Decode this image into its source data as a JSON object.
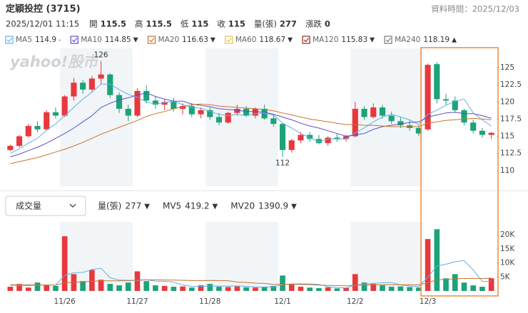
{
  "header": {
    "title": "定穎投控 (3715)",
    "data_time": "資料時間：2025/12/03",
    "datetime": "2025/12/01 11:15",
    "quote": [
      {
        "label": "開",
        "value": 115.5,
        "color": "#e8383d"
      },
      {
        "label": "高",
        "value": 115.5,
        "color": "#e8383d"
      },
      {
        "label": "低",
        "value": 115,
        "color": "#222222"
      },
      {
        "label": "收",
        "value": 115,
        "color": "#222222"
      },
      {
        "label": "量(張)",
        "value": 277,
        "color": "#222222"
      },
      {
        "label": "漲跌",
        "value": 0,
        "color": "#222222"
      }
    ]
  },
  "ma_legend": [
    {
      "name": "MA5",
      "value": 114.9,
      "trend": "-",
      "color": "#5fb0e8",
      "trend_color": "#555555"
    },
    {
      "name": "MA10",
      "value": 114.85,
      "trend": "▼",
      "color": "#5b4fc9",
      "trend_color": "#1da27a"
    },
    {
      "name": "MA20",
      "value": 116.63,
      "trend": "▼",
      "color": "#c8742f",
      "trend_color": "#1da27a"
    },
    {
      "name": "MA60",
      "value": 118.67,
      "trend": "▼",
      "color": "#e8c23c",
      "trend_color": "#1da27a"
    },
    {
      "name": "MA120",
      "value": 115.83,
      "trend": "▼",
      "color": "#8b2b1e",
      "trend_color": "#1da27a"
    },
    {
      "name": "MA240",
      "value": 118.19,
      "trend": "▲",
      "color": "#777777",
      "trend_color": "#e8383d"
    }
  ],
  "volume_panel": {
    "selector": "成交量",
    "items": [
      {
        "name": "量(張)",
        "value": 277,
        "trend": "▼",
        "color": "#333333"
      },
      {
        "name": "MV5",
        "value": 419.2,
        "trend": "▼",
        "color": "#5fb0e8"
      },
      {
        "name": "MV20",
        "value": 1390.9,
        "trend": "▼",
        "color": "#c8742f"
      }
    ]
  },
  "chart_data": [
    {
      "type": "candlestick",
      "watermark": "yahoo!股市",
      "up_color": "#e8383d",
      "down_color": "#1da27a",
      "open": [
        113,
        113.6,
        115,
        116.5,
        116,
        118.5,
        118,
        120.8,
        122.8,
        121.8,
        123.4,
        124,
        121,
        119,
        118,
        121.6,
        120.2,
        119.6,
        120,
        119,
        119.4,
        118.2,
        118.8,
        117.8,
        117,
        118.4,
        119,
        118,
        119,
        117.6,
        116.8,
        113,
        114.4,
        115.2,
        114.6,
        114,
        114.8,
        114.6,
        115,
        119,
        117.8,
        119.2,
        118,
        117.2,
        116.6,
        116.2,
        116,
        125.5,
        120.4,
        120.2,
        118.8,
        117,
        115.8,
        115.2
      ],
      "high": [
        113.8,
        115.2,
        116.8,
        117.2,
        118.8,
        119.2,
        121,
        123.5,
        123.2,
        123.8,
        126,
        124.2,
        121.4,
        119.6,
        122,
        122.4,
        120.8,
        120.4,
        120.6,
        119.8,
        119.8,
        119.2,
        119.2,
        118.4,
        118.6,
        119.6,
        119.4,
        119.2,
        119.6,
        118.2,
        117,
        114.6,
        115.6,
        115.6,
        115.2,
        115,
        115.4,
        115.2,
        120,
        119.4,
        119.8,
        119.6,
        118.6,
        117.8,
        117.4,
        116.6,
        125.6,
        125.8,
        121.2,
        120.8,
        119,
        117.4,
        116.2,
        115.6
      ],
      "low": [
        112.8,
        113.4,
        114.8,
        115.6,
        115.8,
        117.6,
        117.8,
        120.2,
        121.2,
        121.5,
        122.6,
        120.6,
        118.4,
        117.2,
        117.8,
        119.8,
        119,
        118.8,
        118.6,
        118.2,
        117.8,
        117.6,
        117.4,
        116.6,
        116.8,
        118,
        117.8,
        117.6,
        117.4,
        116.4,
        112,
        112.6,
        114,
        114.2,
        113.8,
        113.6,
        114.2,
        114.2,
        114.8,
        117.4,
        117.6,
        117.6,
        116.8,
        116.2,
        115.8,
        115,
        115.8,
        119.8,
        119.6,
        118.4,
        116.6,
        115.4,
        114.8,
        114.6
      ],
      "close": [
        113.6,
        115,
        116.5,
        116,
        118.5,
        118,
        120.8,
        122.8,
        121.8,
        123.4,
        124,
        121,
        119,
        118,
        121.6,
        120.2,
        119.6,
        120,
        119,
        119.4,
        118.2,
        118.8,
        117.8,
        117,
        118.4,
        119,
        118,
        119,
        117.6,
        116.8,
        113,
        114.4,
        115.2,
        114.6,
        114,
        114.8,
        114.6,
        115,
        119,
        117.8,
        119.2,
        118,
        117.2,
        116.6,
        116.2,
        115.4,
        125.4,
        120.4,
        120.2,
        118.8,
        117,
        115.8,
        115.2,
        115.5
      ],
      "series": [
        {
          "name": "MA5",
          "color": "#5fb0e8",
          "values": [
            112.5,
            113.2,
            114,
            114.7,
            115.9,
            116.8,
            118,
            119.2,
            120.4,
            121.4,
            122.6,
            122.6,
            121.8,
            121.1,
            120.7,
            120,
            119.7,
            119.9,
            120.1,
            119.6,
            119.2,
            119.1,
            118.6,
            118.2,
            118,
            118.2,
            118,
            118.3,
            118.4,
            118.1,
            116.9,
            116.2,
            115.4,
            114.8,
            114.2,
            114.6,
            114.6,
            114.6,
            115.5,
            116.2,
            117.1,
            117.8,
            118.2,
            117.8,
            117.4,
            116.7,
            118.2,
            118.8,
            119.5,
            120.1,
            120.4,
            118.4,
            117.4,
            116.5
          ]
        },
        {
          "name": "MA10",
          "color": "#5b4fc9",
          "values": [
            112,
            112.4,
            112.9,
            113.4,
            114,
            114.7,
            115.4,
            116.2,
            117.1,
            118,
            119.2,
            119.8,
            120.3,
            120.6,
            121,
            121.3,
            120.8,
            120.4,
            120.1,
            120.1,
            119.7,
            119.5,
            119.3,
            119,
            118.9,
            118.8,
            118.6,
            118.6,
            118.5,
            118.2,
            117.8,
            117.4,
            116.9,
            116.5,
            116.2,
            115.8,
            115.4,
            115,
            115.2,
            115.4,
            116,
            116.4,
            116.6,
            116.8,
            117,
            117.1,
            117.8,
            118.1,
            118.4,
            118.5,
            118.3,
            118.3,
            118,
            117.6
          ]
        },
        {
          "name": "MA20",
          "color": "#c8742f",
          "values": [
            111,
            111.3,
            111.6,
            111.9,
            112.3,
            112.7,
            113.1,
            113.6,
            114.1,
            114.7,
            115.3,
            115.8,
            116.3,
            116.8,
            117.3,
            117.9,
            118.3,
            118.6,
            119,
            119.3,
            119.6,
            119.7,
            119.6,
            119.4,
            119.3,
            119.2,
            119.1,
            119,
            118.9,
            118.7,
            118.4,
            118.1,
            117.8,
            117.5,
            117.3,
            117.1,
            116.9,
            116.7,
            116.7,
            116.6,
            116.6,
            116.5,
            116.4,
            116.4,
            116.4,
            116.4,
            116.9,
            117.1,
            117.3,
            117.4,
            117.5,
            117.6,
            117.5,
            117.4
          ]
        }
      ],
      "annotations": [
        {
          "label": "126",
          "x": 10,
          "y": 126,
          "color": "#e8383d"
        },
        {
          "label": "112",
          "x": 30,
          "y": 112,
          "color": "#1da27a"
        }
      ],
      "ylim": [
        107.7,
        127.8
      ],
      "yticks": [
        110,
        112.5,
        115,
        117.5,
        120,
        122.5,
        125
      ]
    },
    {
      "type": "bar",
      "up_color": "#e8383d",
      "down_color": "#1da27a",
      "categories": [
        null,
        null,
        null,
        null,
        null,
        null,
        "11/26",
        null,
        null,
        null,
        null,
        null,
        null,
        null,
        "11/27",
        null,
        null,
        null,
        null,
        null,
        null,
        null,
        "11/28",
        null,
        null,
        null,
        null,
        null,
        null,
        null,
        "12/1",
        null,
        null,
        null,
        null,
        null,
        null,
        null,
        "12/2",
        null,
        null,
        null,
        null,
        null,
        null,
        null,
        "12/3",
        null,
        null,
        null,
        null,
        null,
        null,
        null
      ],
      "values": [
        1500,
        2500,
        1200,
        3000,
        2200,
        1800,
        19500,
        6000,
        3500,
        7500,
        4000,
        2500,
        2000,
        3000,
        7000,
        3500,
        2000,
        1800,
        1500,
        1600,
        1200,
        2000,
        2500,
        1500,
        1400,
        1600,
        1300,
        1200,
        1500,
        1800,
        5500,
        2500,
        1500,
        1200,
        1000,
        1300,
        900,
        1100,
        6000,
        3000,
        2500,
        2000,
        1500,
        1600,
        1400,
        1200,
        18500,
        22000,
        4500,
        6000,
        3000,
        2000,
        1500,
        4500
      ],
      "series": [
        {
          "name": "MV5",
          "color": "#5fb0e8",
          "values": [
            2000,
            2000,
            1900,
            2100,
            2080,
            2140,
            5540,
            6500,
            6600,
            7660,
            8100,
            4700,
            3900,
            3800,
            3700,
            4000,
            3500,
            3460,
            3160,
            2080,
            1620,
            1620,
            1760,
            1760,
            1720,
            1800,
            1660,
            1400,
            1400,
            1480,
            2260,
            2500,
            2560,
            2500,
            2340,
            1500,
            1180,
            1100,
            2060,
            2460,
            2700,
            2920,
            3000,
            2120,
            1800,
            1540,
            4840,
            8940,
            9520,
            10440,
            10800,
            7500,
            3400,
            3400
          ]
        },
        {
          "name": "MV20",
          "color": "#c8742f",
          "values": [
            2200,
            2200,
            2150,
            2150,
            2100,
            2100,
            2900,
            3100,
            3200,
            3500,
            3600,
            3600,
            3600,
            3650,
            3900,
            3950,
            3950,
            3900,
            3850,
            3800,
            3700,
            3700,
            3750,
            3700,
            3650,
            3200,
            3050,
            2800,
            2700,
            2300,
            2400,
            2350,
            2300,
            2200,
            2100,
            2000,
            1900,
            1850,
            2050,
            2100,
            2150,
            2200,
            2200,
            2200,
            2200,
            2150,
            2950,
            3950,
            4100,
            4350,
            4450,
            4450,
            4450,
            4600
          ]
        }
      ],
      "ylim": [
        0,
        24600
      ],
      "yticks": [
        {
          "value": 5000,
          "label": "5K"
        },
        {
          "value": 10000,
          "label": "10K"
        },
        {
          "value": 15000,
          "label": "15K"
        },
        {
          "value": 20000,
          "label": "20K"
        }
      ]
    }
  ]
}
